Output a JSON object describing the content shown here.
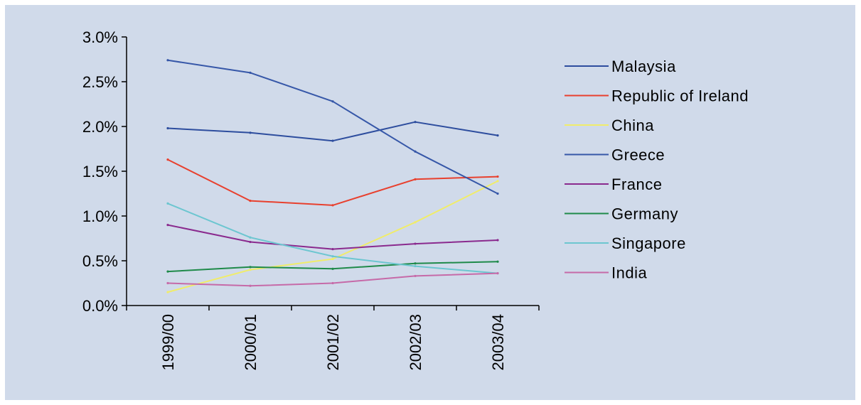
{
  "chart_data": {
    "type": "line",
    "categories": [
      "1999/00",
      "2000/01",
      "2001/02",
      "2002/03",
      "2003/04"
    ],
    "ylim": [
      0,
      0.03
    ],
    "yticks": [
      "0.0%",
      "0.5%",
      "1.0%",
      "1.5%",
      "2.0%",
      "2.5%",
      "3.0%"
    ],
    "ytick_values": [
      0,
      0.005,
      0.01,
      0.015,
      0.02,
      0.025,
      0.03
    ],
    "grid": false,
    "legend_position": "right",
    "series": [
      {
        "name": "Malaysia",
        "color": "#2d4d9e",
        "values": [
          0.0198,
          0.0193,
          0.0184,
          0.0205,
          0.019
        ]
      },
      {
        "name": "Republic of Ireland",
        "color": "#e8402e",
        "values": [
          0.0163,
          0.0117,
          0.0112,
          0.0141,
          0.0144
        ]
      },
      {
        "name": "China",
        "color": "#f0ec6a",
        "values": [
          0.0015,
          0.004,
          0.0052,
          0.0093,
          0.0139
        ]
      },
      {
        "name": "Greece",
        "color": "#3657a8",
        "values": [
          0.0274,
          0.026,
          0.0228,
          0.0172,
          0.0125
        ]
      },
      {
        "name": "France",
        "color": "#8a2a8e",
        "values": [
          0.009,
          0.0071,
          0.0063,
          0.0069,
          0.0073
        ]
      },
      {
        "name": "Germany",
        "color": "#1f8a4a",
        "values": [
          0.0038,
          0.0043,
          0.0041,
          0.0047,
          0.0049
        ]
      },
      {
        "name": "Singapore",
        "color": "#6cc6d0",
        "values": [
          0.0114,
          0.0076,
          0.0055,
          0.0044,
          0.0036
        ]
      },
      {
        "name": "India",
        "color": "#c66aa8",
        "values": [
          0.0025,
          0.0022,
          0.0025,
          0.0033,
          0.0036
        ]
      }
    ]
  }
}
